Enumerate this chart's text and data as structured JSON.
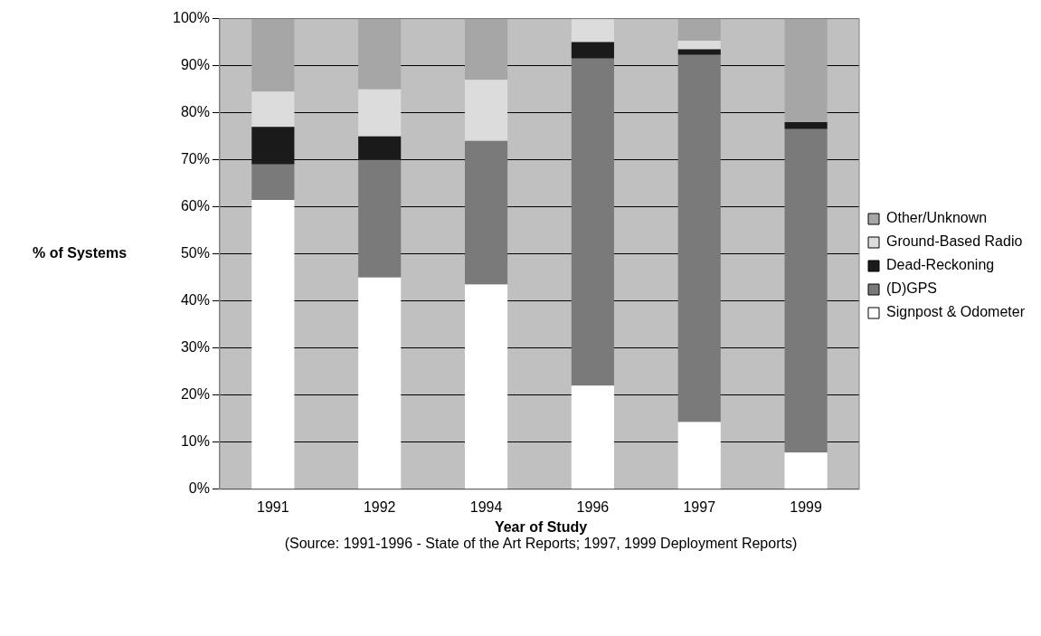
{
  "chart_data": {
    "type": "bar",
    "stacked": true,
    "categories": [
      "1991",
      "1992",
      "1994",
      "1996",
      "1997",
      "1999"
    ],
    "series": [
      {
        "name": "Signpost & Odometer",
        "color": "#ffffff",
        "values": [
          61.5,
          45,
          43.5,
          22,
          14.3,
          7.8
        ]
      },
      {
        "name": "(D)GPS",
        "color": "#7a7a7a",
        "values": [
          7.5,
          25,
          30.5,
          69.5,
          78,
          68.7
        ]
      },
      {
        "name": "Dead-Reckoning",
        "color": "#1a1a1a",
        "values": [
          8,
          5,
          0,
          3.5,
          1.2,
          1.5
        ]
      },
      {
        "name": "Ground-Based Radio",
        "color": "#dcdcdc",
        "values": [
          7.5,
          10,
          13,
          5,
          1.8,
          0
        ]
      },
      {
        "name": "Other/Unknown",
        "color": "#a6a6a6",
        "values": [
          15.5,
          15,
          13,
          0,
          4.7,
          22
        ]
      }
    ],
    "ylim": [
      0,
      100
    ],
    "yticks": [
      {
        "value": 0,
        "label": "0%"
      },
      {
        "value": 10,
        "label": "10%"
      },
      {
        "value": 20,
        "label": "20%"
      },
      {
        "value": 30,
        "label": "30%"
      },
      {
        "value": 40,
        "label": "40%"
      },
      {
        "value": 50,
        "label": "50%"
      },
      {
        "value": 60,
        "label": "60%"
      },
      {
        "value": 70,
        "label": "70%"
      },
      {
        "value": 80,
        "label": "80%"
      },
      {
        "value": 90,
        "label": "90%"
      },
      {
        "value": 100,
        "label": "100%"
      }
    ],
    "grid": "y",
    "legend": "right",
    "xlabel": "Year of Study",
    "ylabel": "% of Systems",
    "annotations": [
      "(Source: 1991-1996 - State of the Art  Reports; 1997, 1999 Deployment Reports)"
    ]
  }
}
